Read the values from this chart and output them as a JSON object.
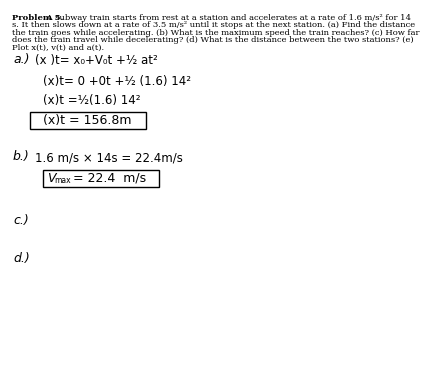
{
  "background_color": "#ffffff",
  "prob_bold": "Problem 5.",
  "prob_rest": " A subway train starts from rest at a station and accelerates at a rate of 1.6 m/s² for 14",
  "prob_line2": "s. It then slows down at a rate of 3.5 m/s² until it stops at the next station. (a) Find the distance",
  "prob_line3": "the train goes while accelerating. (b) What is the maximum speed the train reaches? (c) How far",
  "prob_line4": "does the train travel while decelerating? (d) What is the distance between the two stations? (e)",
  "prob_line5": "Plot x(t), v(t) and a(t).",
  "prob_fontsize": 6.0,
  "part_a_label": "a.)",
  "part_a_line1": "(x )t= x₀+V₀t +½ at²",
  "part_a_line2": "(x)t= 0 +0t +½ (1.6) 14²",
  "part_a_line3": "(x)t =½(1.6) 14²",
  "part_a_boxed": "(x)t = 156.8m",
  "part_b_label": "b.)",
  "part_b_line1": "1.6 m/s × 14s = 22.4m/s",
  "part_b_boxed": "Vmax = 22.4  m/s",
  "part_c_label": "c.)",
  "part_d_label": "d.)",
  "hand_font": "DejaVu Sans",
  "label_fontsize": 9.0,
  "body_fontsize": 8.5
}
